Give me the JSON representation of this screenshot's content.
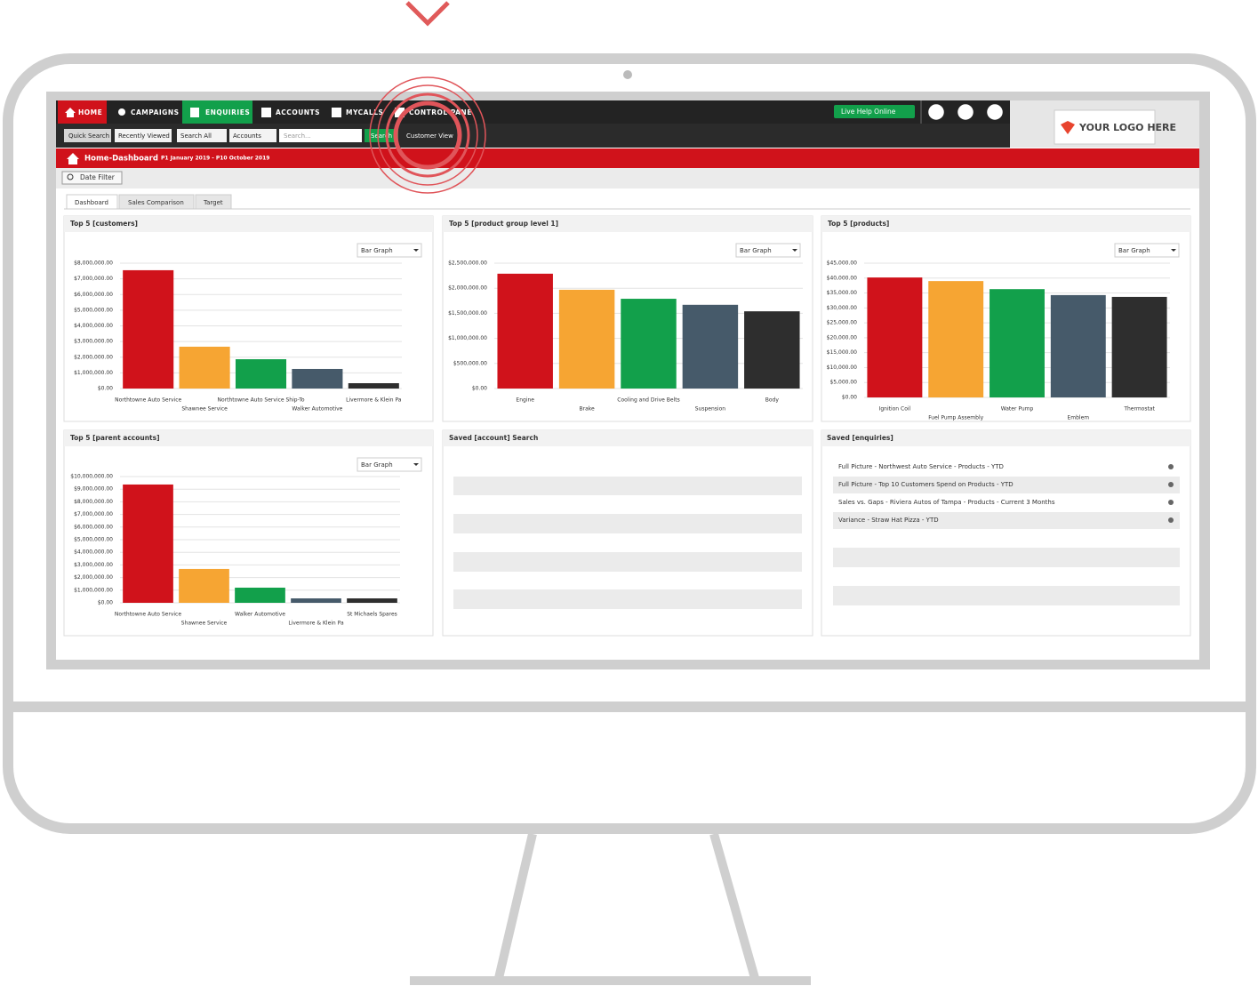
{
  "nav": {
    "items": [
      "HOME",
      "CAMPAIGNS",
      "ENQUIRIES",
      "ACCOUNTS",
      "MYCALLS",
      "CONTROL PANE"
    ],
    "live_help": "Live Help Online"
  },
  "toolbar": {
    "quick_search": "Quick Search",
    "recently_viewed": "Recently Viewed",
    "search_scope": "Search All",
    "search_type": "Accounts",
    "search_placeholder": "Search...",
    "search_button": "Search",
    "customer_view": "Customer View"
  },
  "logo": "YOUR LOGO HERE",
  "header": {
    "title": "Home-Dashboard",
    "period": "P1 January 2019 - P10 October 2019"
  },
  "date_filter": "Date Filter",
  "tabs": [
    "Dashboard",
    "Sales Comparison",
    "Target"
  ],
  "chart_data": [
    {
      "type": "bar",
      "title": "Top 5 [customers]",
      "control": "Bar Graph",
      "categories": [
        "Northtowne Auto Service",
        "Shawnee Service",
        "Northtowne Auto Service Ship-To",
        "Walker Automotive",
        "Livermore & Klein Pa"
      ],
      "values": [
        7550000,
        2670000,
        1870000,
        1250000,
        340000
      ],
      "colors": [
        "#d0121b",
        "#f6a533",
        "#12a04b",
        "#465a6a",
        "#2e2e2e"
      ],
      "grid": true,
      "ylim": [
        0,
        8000000
      ],
      "yticks": [
        {
          "value": 0,
          "label": "$0.00"
        },
        {
          "value": 1000000,
          "label": "$1,000,000.00"
        },
        {
          "value": 2000000,
          "label": "$2,000,000.00"
        },
        {
          "value": 3000000,
          "label": "$3,000,000.00"
        },
        {
          "value": 4000000,
          "label": "$4,000,000.00"
        },
        {
          "value": 5000000,
          "label": "$5,000,000.00"
        },
        {
          "value": 6000000,
          "label": "$6,000,000.00"
        },
        {
          "value": 7000000,
          "label": "$7,000,000.00"
        },
        {
          "value": 8000000,
          "label": "$8,000,000.00"
        }
      ]
    },
    {
      "type": "bar",
      "title": "Top 5 [product group level 1]",
      "control": "Bar Graph",
      "categories": [
        "Engine",
        "Brake",
        "Cooling and Drive Belts",
        "Suspension",
        "Body"
      ],
      "values": [
        2290000,
        1970000,
        1790000,
        1670000,
        1540000
      ],
      "colors": [
        "#d0121b",
        "#f6a533",
        "#12a04b",
        "#465a6a",
        "#2e2e2e"
      ],
      "grid": true,
      "ylim": [
        0,
        2500000
      ],
      "yticks": [
        {
          "value": 0,
          "label": "$0.00"
        },
        {
          "value": 500000,
          "label": "$500,000.00"
        },
        {
          "value": 1000000,
          "label": "$1,000,000.00"
        },
        {
          "value": 1500000,
          "label": "$1,500,000.00"
        },
        {
          "value": 2000000,
          "label": "$2,000,000.00"
        },
        {
          "value": 2500000,
          "label": "$2,500,000.00"
        }
      ]
    },
    {
      "type": "bar",
      "title": "Top 5 [products]",
      "control": "Bar Graph",
      "categories": [
        "Ignition Coil",
        "Fuel Pump Assembly",
        "Water Pump",
        "Emblem",
        "Thermostat"
      ],
      "values": [
        40200,
        39000,
        36300,
        34300,
        33700
      ],
      "colors": [
        "#d0121b",
        "#f6a533",
        "#12a04b",
        "#465a6a",
        "#2e2e2e"
      ],
      "grid": true,
      "ylim": [
        0,
        45000
      ],
      "yticks": [
        {
          "value": 0,
          "label": "$0.00"
        },
        {
          "value": 5000,
          "label": "$5,000.00"
        },
        {
          "value": 10000,
          "label": "$10,000.00"
        },
        {
          "value": 15000,
          "label": "$15,000.00"
        },
        {
          "value": 20000,
          "label": "$20,000.00"
        },
        {
          "value": 25000,
          "label": "$25,000.00"
        },
        {
          "value": 30000,
          "label": "$30,000.00"
        },
        {
          "value": 35000,
          "label": "$35,000.00"
        },
        {
          "value": 40000,
          "label": "$40,000.00"
        },
        {
          "value": 45000,
          "label": "$45,000.00"
        }
      ]
    },
    {
      "type": "bar",
      "title": "Top 5 [parent accounts]",
      "control": "Bar Graph",
      "categories": [
        "Northtowne Auto Service",
        "Shawnee Service",
        "Walker Automotive",
        "Livermore & Klein Pa",
        "St Michaels Spares"
      ],
      "values": [
        9370000,
        2680000,
        1200000,
        350000,
        350000
      ],
      "colors": [
        "#d0121b",
        "#f6a533",
        "#12a04b",
        "#465a6a",
        "#2e2e2e"
      ],
      "grid": true,
      "ylim": [
        0,
        10000000
      ],
      "yticks": [
        {
          "value": 0,
          "label": "$0.00"
        },
        {
          "value": 1000000,
          "label": "$1,000,000.00"
        },
        {
          "value": 2000000,
          "label": "$2,000,000.00"
        },
        {
          "value": 3000000,
          "label": "$3,000,000.00"
        },
        {
          "value": 4000000,
          "label": "$4,000,000.00"
        },
        {
          "value": 5000000,
          "label": "$5,000,000.00"
        },
        {
          "value": 6000000,
          "label": "$6,000,000.00"
        },
        {
          "value": 7000000,
          "label": "$7,000,000.00"
        },
        {
          "value": 8000000,
          "label": "$8,000,000.00"
        },
        {
          "value": 9000000,
          "label": "$9,000,000.00"
        },
        {
          "value": 10000000,
          "label": "$10,000,000.00"
        }
      ]
    }
  ],
  "saved_account_search": {
    "title": "Saved [account] Search"
  },
  "saved_enquiries": {
    "title": "Saved [enquiries]",
    "items": [
      "Full Picture - Northwest Auto Service - Products - YTD",
      "Full Picture - Top 10 Customers Spend on Products - YTD",
      "Sales vs. Gaps - Riviera Autos of Tampa - Products - Current 3 Months",
      "Variance - Straw Hat Pizza - YTD"
    ]
  }
}
